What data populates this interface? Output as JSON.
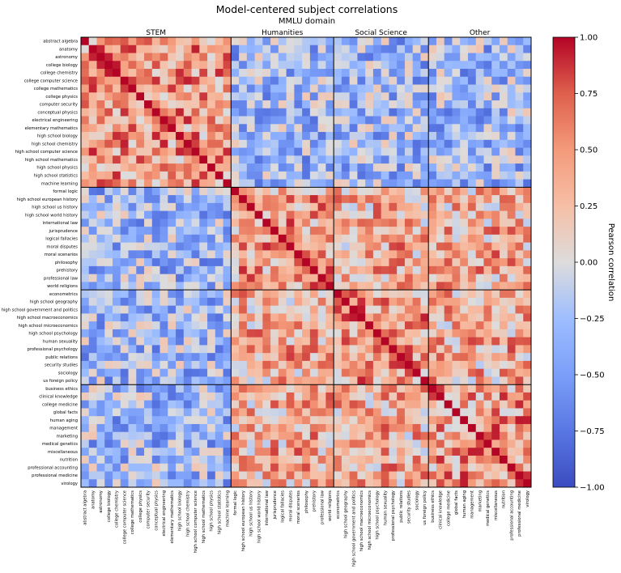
{
  "chart_data": {
    "type": "heatmap",
    "title": "Model-centered subject correlations",
    "subtitle": "MMLU domain",
    "colorbar": {
      "label": "Pearson correlation",
      "ticks": [
        "1.00",
        "0.75",
        "0.50",
        "0.25",
        "0.00",
        "−0.25",
        "−0.50",
        "−0.75",
        "−1.00"
      ],
      "range": [
        -1,
        1
      ],
      "colormap": "coolwarm",
      "low_color": "#3b4cc0",
      "mid_color": "#dddddd",
      "high_color": "#b40426"
    },
    "groups": [
      {
        "name": "STEM",
        "count": 19
      },
      {
        "name": "Humanities",
        "count": 13
      },
      {
        "name": "Social Science",
        "count": 12
      },
      {
        "name": "Other",
        "count": 13
      }
    ],
    "subjects": [
      "abstract algebra",
      "anatomy",
      "astronomy",
      "college biology",
      "college chemistry",
      "college computer science",
      "college mathematics",
      "college physics",
      "computer security",
      "conceptual physics",
      "electrical engineering",
      "elementary mathematics",
      "high school biology",
      "high school chemistry",
      "high school computer science",
      "high school mathematics",
      "high school physics",
      "high school statistics",
      "machine learning",
      "formal logic",
      "high school european history",
      "high school us history",
      "high school world history",
      "international law",
      "jurisprudence",
      "logical fallacies",
      "moral disputes",
      "moral scenarios",
      "philosophy",
      "prehistory",
      "professional law",
      "world religions",
      "econometrics",
      "high school geography",
      "high school government and politics",
      "high school macroeconomics",
      "high school microeconomics",
      "high school psychology",
      "human sexuality",
      "professional psychology",
      "public relations",
      "security studies",
      "sociology",
      "us foreign policy",
      "business ethics",
      "clinical knowledge",
      "college medicine",
      "global facts",
      "human aging",
      "management",
      "marketing",
      "medical genetics",
      "miscellaneous",
      "nutrition",
      "professional accounting",
      "professional medicine",
      "virology"
    ],
    "matrix_note": "",
    "grid": false
  }
}
